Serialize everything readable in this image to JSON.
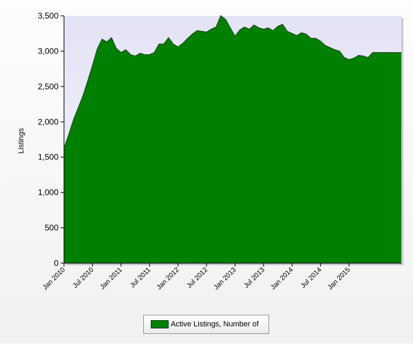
{
  "chart_data": {
    "type": "area",
    "title": "",
    "xlabel": "",
    "ylabel": "Listings",
    "ylim": [
      0,
      3500
    ],
    "yticks": [
      0,
      500,
      1000,
      1500,
      2000,
      2500,
      3000,
      3500
    ],
    "ytick_labels": [
      "0",
      "500",
      "1,000",
      "1,500",
      "2,000",
      "2,500",
      "3,000",
      "3,500"
    ],
    "xtick_labels": [
      "Jan 2010",
      "Jul 2010",
      "Jan 2011",
      "Jul 2011",
      "Jan 2012",
      "Jul 2012",
      "Jan 2013",
      "Jul 2013",
      "Jan 2014",
      "Jul 2014",
      "Jan 2015"
    ],
    "x_start": "2010-01",
    "x_end": "2015-12",
    "grid": false,
    "legend_placement": "bottom-center",
    "colors": {
      "fill": "#008000",
      "line": "#1e4a1e",
      "plot_background": "#e9e9f9"
    },
    "series": [
      {
        "name": "Active Listings, Number of",
        "x": [
          "2010-01",
          "2010-02",
          "2010-03",
          "2010-04",
          "2010-05",
          "2010-06",
          "2010-07",
          "2010-08",
          "2010-09",
          "2010-10",
          "2010-11",
          "2010-12",
          "2011-01",
          "2011-02",
          "2011-03",
          "2011-04",
          "2011-05",
          "2011-06",
          "2011-07",
          "2011-08",
          "2011-09",
          "2011-10",
          "2011-11",
          "2011-12",
          "2012-01",
          "2012-02",
          "2012-03",
          "2012-04",
          "2012-05",
          "2012-06",
          "2012-07",
          "2012-08",
          "2012-09",
          "2012-10",
          "2012-11",
          "2012-12",
          "2013-01",
          "2013-02",
          "2013-03",
          "2013-04",
          "2013-05",
          "2013-06",
          "2013-07",
          "2013-08",
          "2013-09",
          "2013-10",
          "2013-11",
          "2013-12",
          "2014-01",
          "2014-02",
          "2014-03",
          "2014-04",
          "2014-05",
          "2014-06",
          "2014-07",
          "2014-08",
          "2014-09",
          "2014-10",
          "2014-11",
          "2014-12",
          "2015-01",
          "2015-02",
          "2015-03",
          "2015-04",
          "2015-05",
          "2015-06"
        ],
        "values": [
          1630,
          1820,
          2030,
          2200,
          2370,
          2580,
          2800,
          3030,
          3170,
          3130,
          3190,
          3040,
          2980,
          3020,
          2950,
          2930,
          2970,
          2950,
          2950,
          2980,
          3100,
          3100,
          3190,
          3100,
          3060,
          3110,
          3180,
          3240,
          3290,
          3280,
          3270,
          3310,
          3340,
          3500,
          3450,
          3330,
          3210,
          3300,
          3340,
          3310,
          3370,
          3330,
          3310,
          3330,
          3290,
          3350,
          3380,
          3280,
          3250,
          3220,
          3260,
          3240,
          3180,
          3180,
          3140,
          3080,
          3050,
          3020,
          3000,
          2910,
          2880,
          2900,
          2940,
          2930,
          2910,
          2980
        ]
      }
    ]
  },
  "legend": {
    "label": "Active Listings, Number of"
  }
}
